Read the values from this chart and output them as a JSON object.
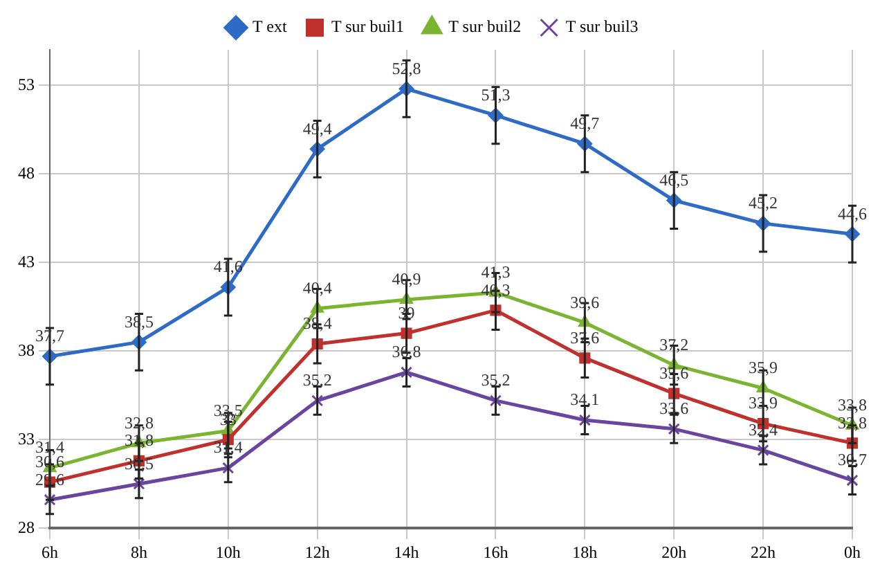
{
  "chart_data": {
    "type": "line",
    "categories": [
      "6h",
      "8h",
      "10h",
      "12h",
      "14h",
      "16h",
      "18h",
      "20h",
      "22h",
      "0h"
    ],
    "series": [
      {
        "name": "T ext",
        "color": "#2e6bc6",
        "marker": "diamond",
        "values": [
          37.7,
          38.5,
          41.6,
          49.4,
          52.8,
          51.3,
          49.7,
          46.5,
          45.2,
          44.6
        ],
        "errors": [
          1.6,
          1.6,
          1.6,
          1.6,
          1.6,
          1.6,
          1.6,
          1.6,
          1.6,
          1.6
        ],
        "value_labels": [
          "37,7",
          "38,5",
          "41,6",
          "49,4",
          "52,8",
          "51,3",
          "49,7",
          "46,5",
          "45,2",
          "44,6"
        ]
      },
      {
        "name": "T sur buil1",
        "color": "#c0302c",
        "marker": "square",
        "values": [
          30.6,
          31.8,
          33,
          38.4,
          39,
          40.3,
          37.6,
          35.6,
          33.9,
          32.8
        ],
        "errors": [
          1,
          1,
          1,
          1.1,
          1.1,
          1.1,
          1.1,
          1.1,
          1,
          1
        ],
        "value_labels": [
          "30,6",
          "31,8",
          "33",
          "38,4",
          "39",
          "40,3",
          "37,6",
          "35,6",
          "33,9",
          "32,8"
        ]
      },
      {
        "name": "T sur buil2",
        "color": "#7ab430",
        "marker": "triangle",
        "values": [
          31.4,
          32.8,
          33.5,
          40.4,
          40.9,
          41.3,
          39.6,
          37.2,
          35.9,
          33.8
        ],
        "errors": [
          1,
          1,
          1,
          1.1,
          1.1,
          1.1,
          1.1,
          1.1,
          1,
          1
        ],
        "value_labels": [
          "31,4",
          "32,8",
          "33,5",
          "40,4",
          "40,9",
          "41,3",
          "39,6",
          "37,2",
          "35,9",
          "33,8"
        ]
      },
      {
        "name": "T sur buil3",
        "color": "#6a45a0",
        "marker": "cross",
        "values": [
          29.6,
          30.5,
          31.4,
          35.2,
          36.8,
          35.2,
          34.1,
          33.6,
          32.4,
          30.7
        ],
        "errors": [
          0.8,
          0.8,
          0.8,
          0.8,
          0.8,
          0.8,
          0.8,
          0.8,
          0.8,
          0.8
        ],
        "value_labels": [
          "29,6",
          "30,5",
          "31,4",
          "35,2",
          "36,8",
          "35,2",
          "34,1",
          "33,6",
          "32,4",
          "30,7"
        ]
      }
    ],
    "ylim": [
      28,
      55
    ],
    "yticks": [
      28,
      33,
      38,
      43,
      48,
      53
    ],
    "grid": true,
    "legend": "top",
    "line_style": "solid"
  }
}
